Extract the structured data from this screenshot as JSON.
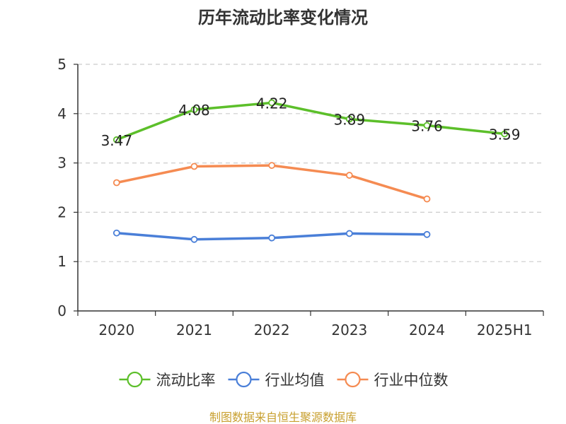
{
  "chart_data": {
    "type": "line",
    "title": "历年流动比率变化情况",
    "categories": [
      "2020",
      "2021",
      "2022",
      "2023",
      "2024",
      "2025H1"
    ],
    "ylim": [
      0,
      5
    ],
    "yticks": [
      0,
      1,
      2,
      3,
      4,
      5
    ],
    "grid": true,
    "legend_position": "bottom",
    "series": [
      {
        "name": "流动比率",
        "color": "#5cbf2a",
        "values": [
          3.47,
          4.08,
          4.22,
          3.89,
          3.76,
          3.59
        ],
        "labels": [
          "3.47",
          "4.08",
          "4.22",
          "3.89",
          "3.76",
          "3.59"
        ]
      },
      {
        "name": "行业均值",
        "color": "#4a7fd8",
        "values": [
          1.58,
          1.45,
          1.48,
          1.57,
          1.55,
          null
        ]
      },
      {
        "name": "行业中位数",
        "color": "#f58b52",
        "values": [
          2.6,
          2.93,
          2.95,
          2.75,
          2.27,
          null
        ]
      }
    ],
    "source": "制图数据来自恒生聚源数据库"
  }
}
